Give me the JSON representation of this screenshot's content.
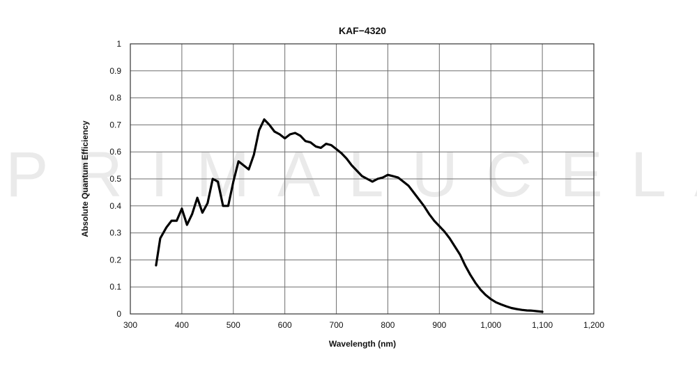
{
  "chart_data": {
    "type": "line",
    "title": "KAF−4320",
    "xlabel": "Wavelength (nm)",
    "ylabel": "Absolute Quantum Efficiency",
    "xlim": [
      300,
      1200
    ],
    "ylim": [
      0,
      1
    ],
    "x_ticks": [
      "300",
      "400",
      "500",
      "600",
      "700",
      "800",
      "900",
      "1,000",
      "1,100",
      "1,200"
    ],
    "y_ticks": [
      "0",
      "0.1",
      "0.2",
      "0.3",
      "0.4",
      "0.5",
      "0.6",
      "0.7",
      "0.8",
      "0.9",
      "1"
    ],
    "grid": true,
    "series": [
      {
        "x": [
          350,
          358,
          370,
          380,
          390,
          400,
          410,
          420,
          430,
          440,
          450,
          460,
          470,
          480,
          490,
          500,
          510,
          520,
          530,
          540,
          550,
          560,
          570,
          580,
          590,
          600,
          610,
          620,
          630,
          640,
          650,
          660,
          670,
          680,
          690,
          700,
          710,
          720,
          730,
          740,
          750,
          760,
          770,
          780,
          790,
          800,
          810,
          820,
          830,
          840,
          850,
          860,
          870,
          880,
          890,
          900,
          910,
          920,
          930,
          940,
          950,
          960,
          970,
          980,
          990,
          1000,
          1010,
          1020,
          1030,
          1040,
          1050,
          1060,
          1070,
          1080,
          1090,
          1100
        ],
        "values": [
          0.18,
          0.28,
          0.32,
          0.345,
          0.345,
          0.39,
          0.33,
          0.37,
          0.43,
          0.375,
          0.41,
          0.5,
          0.49,
          0.4,
          0.4,
          0.49,
          0.565,
          0.55,
          0.535,
          0.59,
          0.68,
          0.72,
          0.7,
          0.675,
          0.665,
          0.65,
          0.665,
          0.67,
          0.66,
          0.64,
          0.635,
          0.62,
          0.615,
          0.63,
          0.625,
          0.61,
          0.595,
          0.575,
          0.55,
          0.53,
          0.51,
          0.5,
          0.49,
          0.5,
          0.505,
          0.515,
          0.51,
          0.505,
          0.49,
          0.475,
          0.45,
          0.425,
          0.4,
          0.37,
          0.345,
          0.325,
          0.305,
          0.28,
          0.25,
          0.22,
          0.18,
          0.145,
          0.115,
          0.09,
          0.07,
          0.055,
          0.043,
          0.035,
          0.028,
          0.022,
          0.018,
          0.015,
          0.013,
          0.012,
          0.01,
          0.008
        ]
      }
    ]
  },
  "watermark": {
    "text": "PRIMALUCELAB"
  }
}
